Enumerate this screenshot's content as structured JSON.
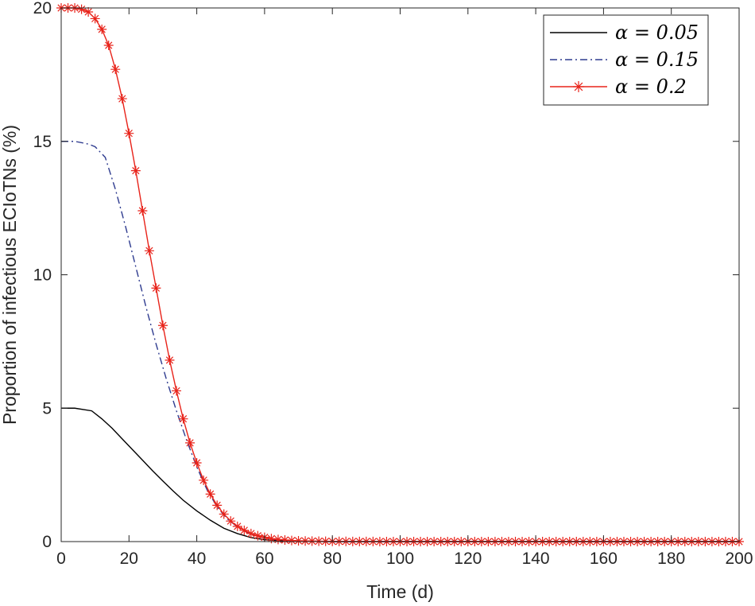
{
  "chart_data": {
    "type": "line",
    "xlabel": "Time (d)",
    "ylabel": "Proportion of infectious ECIoTNs (%)",
    "xlim": [
      0,
      200
    ],
    "ylim": [
      0,
      20
    ],
    "xticks": [
      "0",
      "20",
      "40",
      "60",
      "80",
      "100",
      "120",
      "140",
      "160",
      "180",
      "200"
    ],
    "yticks": [
      "0",
      "5",
      "10",
      "15",
      "20"
    ],
    "grid": false,
    "legend_position": "top-right",
    "series": [
      {
        "name": "α = 0.05",
        "style": "solid",
        "color": "#000000",
        "marker": "none",
        "x": [
          0,
          4,
          9,
          12,
          15,
          18,
          21,
          24,
          27,
          30,
          33,
          36,
          40,
          44,
          48,
          52,
          56,
          60,
          65,
          70,
          80,
          100,
          150,
          200
        ],
        "y": [
          5.0,
          5.0,
          4.9,
          4.6,
          4.25,
          3.85,
          3.45,
          3.05,
          2.65,
          2.27,
          1.9,
          1.55,
          1.15,
          0.8,
          0.5,
          0.3,
          0.15,
          0.07,
          0.03,
          0.01,
          0.0,
          0.0,
          0.0,
          0.0
        ]
      },
      {
        "name": "α = 0.15",
        "style": "dashdot",
        "color": "#2e3b8f",
        "marker": "none",
        "x": [
          0,
          4,
          8,
          10,
          13,
          16,
          19,
          22,
          25,
          28,
          31,
          34,
          37,
          40,
          43,
          46,
          49,
          52,
          55,
          58,
          62,
          66,
          70,
          80,
          100,
          150,
          200
        ],
        "y": [
          15.0,
          15.0,
          14.9,
          14.8,
          14.4,
          13.2,
          11.8,
          10.3,
          8.8,
          7.4,
          6.1,
          4.9,
          3.8,
          2.8,
          1.95,
          1.3,
          0.85,
          0.55,
          0.33,
          0.19,
          0.09,
          0.04,
          0.02,
          0.0,
          0.0,
          0.0,
          0.0
        ]
      },
      {
        "name": "α = 0.2",
        "style": "solid",
        "color": "#e8231a",
        "marker": "asterisk",
        "x": [
          0,
          2,
          4,
          6,
          8,
          10,
          12,
          14,
          16,
          18,
          20,
          22,
          24,
          26,
          28,
          30,
          32,
          34,
          36,
          38,
          40,
          42,
          44,
          46,
          48,
          50,
          52,
          54,
          56,
          58,
          60,
          62,
          64,
          66,
          68,
          70,
          75,
          80,
          90,
          100,
          120,
          140,
          160,
          180,
          200
        ],
        "y": [
          20.0,
          20.0,
          20.0,
          19.95,
          19.85,
          19.6,
          19.2,
          18.6,
          17.7,
          16.6,
          15.3,
          13.9,
          12.4,
          10.9,
          9.5,
          8.1,
          6.8,
          5.65,
          4.6,
          3.7,
          2.95,
          2.3,
          1.78,
          1.36,
          1.03,
          0.77,
          0.57,
          0.42,
          0.3,
          0.22,
          0.16,
          0.11,
          0.08,
          0.06,
          0.04,
          0.03,
          0.015,
          0.008,
          0.003,
          0.0,
          0.0,
          0.0,
          0.0,
          0.0,
          0.0
        ]
      }
    ]
  }
}
